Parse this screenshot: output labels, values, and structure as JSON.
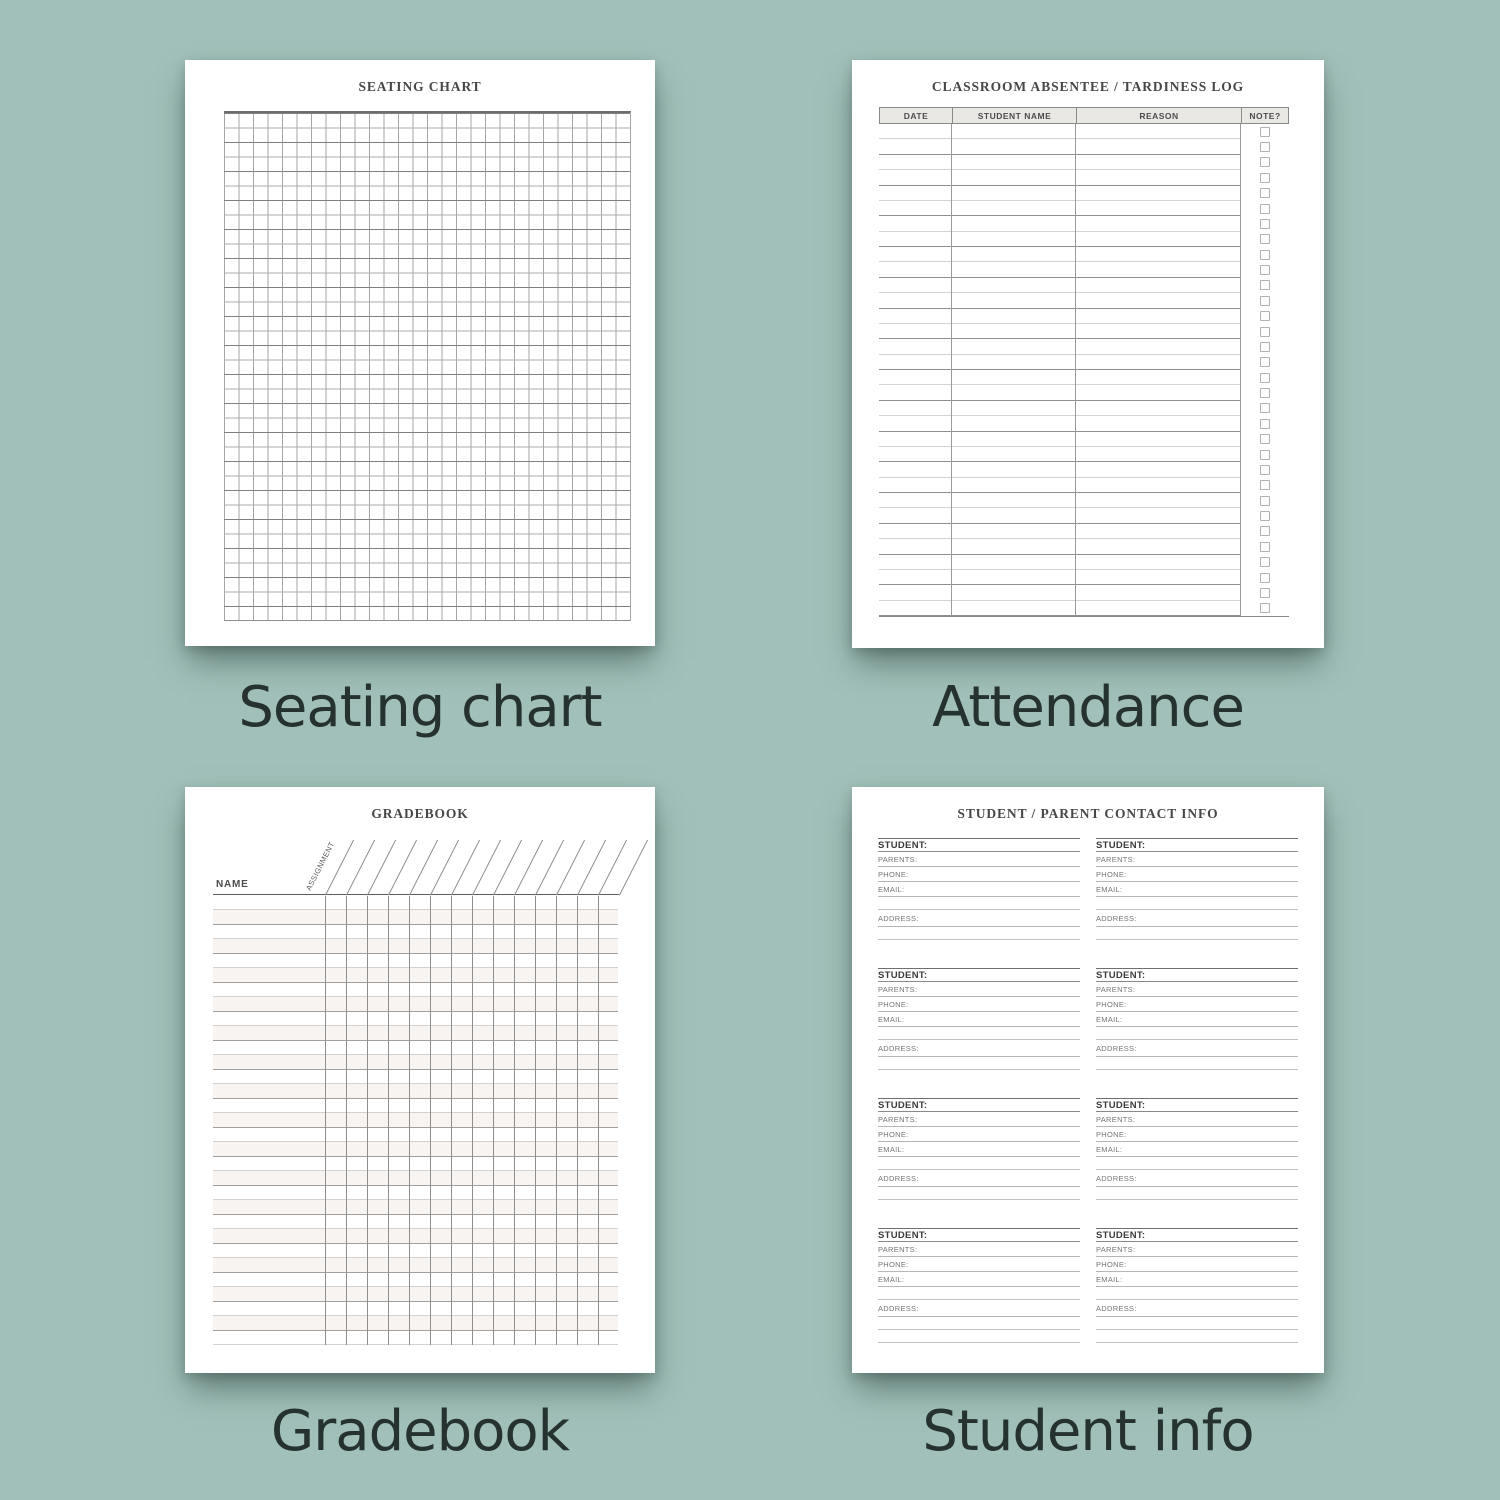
{
  "colors": {
    "background": "#a1c0b9",
    "caption_text": "#263230",
    "page_background": "#ffffff",
    "table_header_background": "#e9e8e4",
    "gradebook_row_shade": "#f8f4f1"
  },
  "pages": {
    "seating": {
      "title": "SEATING CHART",
      "caption": "Seating chart",
      "grid": {
        "columns": 28,
        "rows": 35
      }
    },
    "attendance": {
      "title": "CLASSROOM ABSENTEE / TARDINESS LOG",
      "caption": "Attendance",
      "columns": [
        "DATE",
        "STUDENT NAME",
        "REASON",
        "NOTE?"
      ],
      "rows": 32
    },
    "gradebook": {
      "title": "GRADEBOOK",
      "caption": "Gradebook",
      "name_header": "NAME",
      "assignment_header": "ASSIGNMENT",
      "rows": 31,
      "grade_columns": 13,
      "slant_lines": 15
    },
    "student_info": {
      "title": "STUDENT / PARENT CONTACT INFO",
      "caption": "Student info",
      "labels": {
        "student": "STUDENT:",
        "parents": "PARENTS:",
        "phone": "PHONE:",
        "email": "EMAIL:",
        "address": "ADDRESS:"
      },
      "blocks": 8
    }
  }
}
